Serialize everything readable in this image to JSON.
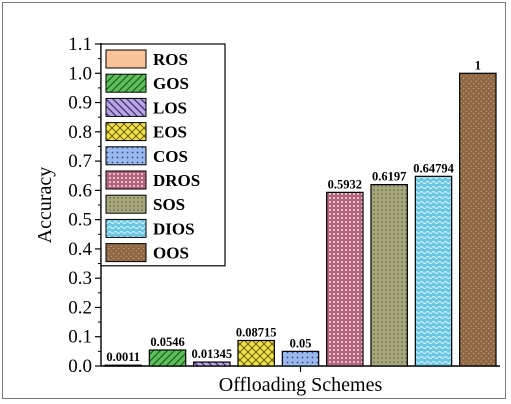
{
  "chart_data": {
    "type": "bar",
    "xlabel": "Offloading Schemes",
    "ylabel": "Accuracy",
    "ylim": [
      0.0,
      1.1
    ],
    "yticks": [
      "0.0",
      "0.1",
      "0.2",
      "0.3",
      "0.4",
      "0.5",
      "0.6",
      "0.7",
      "0.8",
      "0.9",
      "1.0",
      "1.1"
    ],
    "legend_position": "top-left",
    "grid": false,
    "categories": [
      "ROS",
      "GOS",
      "LOS",
      "EOS",
      "COS",
      "DROS",
      "SOS",
      "DIOS",
      "OOS"
    ],
    "values": [
      0.0011,
      0.0546,
      0.01345,
      0.08715,
      0.05,
      0.5932,
      0.6197,
      0.64794,
      1
    ],
    "value_labels": [
      "0.0011",
      "0.0546",
      "0.01345",
      "0.08715",
      "0.05",
      "0.5932",
      "0.6197",
      "0.64794",
      "1"
    ],
    "colors": [
      "#F9C49A",
      "#5BBF5B",
      "#B9A6E3",
      "#F2E24A",
      "#9BB9EC",
      "#B4647D",
      "#A7A77D",
      "#69C7E3",
      "#8E6745"
    ],
    "patterns": [
      "solid",
      "diagonal-hatch",
      "back-diagonal-hatch",
      "crosshatch",
      "dots",
      "dots-dense",
      "dots",
      "waves",
      "speckle"
    ]
  }
}
